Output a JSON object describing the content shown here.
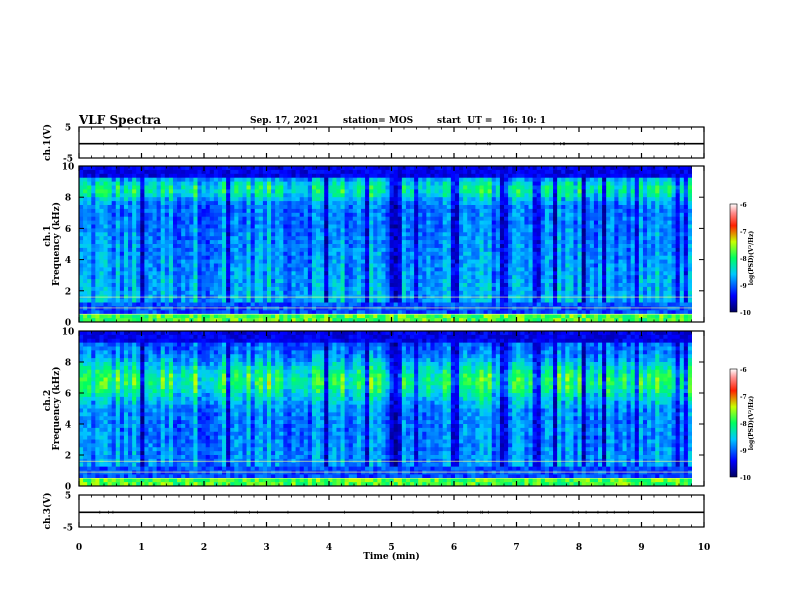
{
  "header": {
    "title": "VLF Spectra",
    "date": "Sep. 17, 2021",
    "station": "station= MOS",
    "start": "start  UT =   16: 10: 1"
  },
  "chart_data": [
    {
      "type": "line",
      "name": "ch1-voltage",
      "ylabel": "ch.1(V)",
      "ylim": [
        -5,
        5
      ],
      "y_ticks": [
        "5",
        "-5"
      ],
      "x": [
        0,
        10
      ],
      "values": [
        -0.4,
        -0.4
      ]
    },
    {
      "type": "heatmap",
      "name": "ch1-spectrogram",
      "ylabel_top": "ch.1",
      "ylabel": "Frequency (kHz)",
      "ylim": [
        0,
        10
      ],
      "y_ticks": [
        "0",
        "2",
        "4",
        "6",
        "8",
        "10"
      ],
      "xlim": [
        0,
        10
      ],
      "colorbar": {
        "label": "log(PSD)(V²/Hz)",
        "range": [
          -10,
          -6
        ],
        "ticks": [
          "-6",
          "-7",
          "-8",
          "-9",
          "-10"
        ]
      },
      "description_level": "broadband impulsive bursts, strongest band near 8–9 kHz"
    },
    {
      "type": "heatmap",
      "name": "ch2-spectrogram",
      "ylabel_top": "ch.2",
      "ylabel": "Frequency (kHz)",
      "ylim": [
        0,
        10
      ],
      "y_ticks": [
        "0",
        "2",
        "4",
        "6",
        "8",
        "10"
      ],
      "xlim": [
        0,
        10
      ],
      "colorbar": {
        "label": "log(PSD)(V²/Hz)",
        "range": [
          -10,
          -6
        ],
        "ticks": [
          "-6",
          "-7",
          "-8",
          "-9",
          "-10"
        ]
      },
      "description_level": "strong band near 6–8 kHz"
    },
    {
      "type": "line",
      "name": "ch3-voltage",
      "ylabel": "ch.3(V)",
      "ylim": [
        -5,
        5
      ],
      "y_ticks": [
        "5",
        "-5"
      ],
      "x": [
        0,
        10
      ],
      "values": [
        -0.4,
        -0.4
      ]
    }
  ],
  "xaxis": {
    "label": "Time (min)",
    "ticks": [
      "0",
      "1",
      "2",
      "3",
      "4",
      "5",
      "6",
      "7",
      "8",
      "9",
      "10"
    ]
  },
  "colors": {
    "scale": [
      "#000080",
      "#0000ff",
      "#00bfff",
      "#00ff80",
      "#ffff00",
      "#ff4000",
      "#ffffff"
    ]
  }
}
